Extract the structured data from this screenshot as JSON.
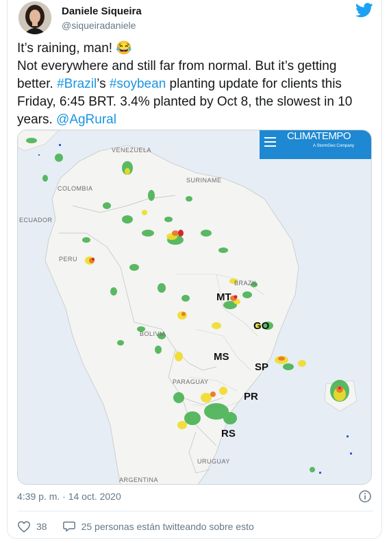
{
  "author": {
    "name": "Daniele Siqueira",
    "handle": "@siqueiradaniele"
  },
  "tweet": {
    "line1": "It’s raining, man! 😂",
    "line2_pre": "Not everywhere and still far from normal. But it’s getting better. ",
    "hashtag1": "#Brazil",
    "apostrophe": "’s ",
    "hashtag2": "#soybean",
    "line2_post": " planting update for clients this Friday, 6:45 BRT. 3.4% planted by Oct 8, the slowest in 10 years. ",
    "mention": "@AgRural"
  },
  "map": {
    "brand": "CLIMATEMPO",
    "brand_sub": "A StormGeo Company",
    "countries": [
      "VENEZUELA",
      "COLOMBIA",
      "SURINAME",
      "ECUADOR",
      "PERU",
      "BRAZIL",
      "BOLIVIA",
      "PARAGUAY",
      "URUGUAY",
      "ARGENTINA"
    ],
    "states": [
      "MT",
      "GO",
      "MS",
      "SP",
      "PR",
      "RS"
    ]
  },
  "meta": {
    "timestamp": "4:39 p. m. · 14 oct. 2020",
    "likes": "38",
    "replies_text": "25 personas están twitteando sobre esto"
  },
  "colors": {
    "link": "#1b95e0",
    "twitter_blue": "#1da1f2",
    "climatempo_blue": "#1e88d2"
  }
}
